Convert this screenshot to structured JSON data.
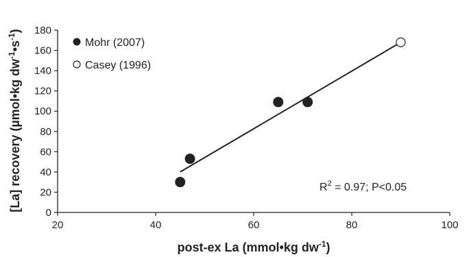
{
  "chart_data": {
    "type": "scatter",
    "xlabel_main": "post-ex La (mmol•kg dw",
    "xlabel_sup": "-1",
    "xlabel_close": ")",
    "ylabel_main": "[La] recovery (µmol•kg dw",
    "ylabel_sup1": "-1",
    "ylabel_mid": "•s",
    "ylabel_sup2": "-1",
    "ylabel_close": ")",
    "xlim": [
      20,
      100
    ],
    "ylim": [
      0,
      180
    ],
    "xticks": [
      "20",
      "40",
      "60",
      "80",
      "100"
    ],
    "yticks": [
      "0",
      "20",
      "40",
      "60",
      "80",
      "100",
      "120",
      "140",
      "160",
      "180"
    ],
    "series": [
      {
        "name": "Mohr (2007)",
        "marker": "filled",
        "points": [
          {
            "x": 45,
            "y": 30
          },
          {
            "x": 47,
            "y": 53
          },
          {
            "x": 65,
            "y": 109
          },
          {
            "x": 71,
            "y": 109
          }
        ]
      },
      {
        "name": "Casey (1996)",
        "marker": "open",
        "points": [
          {
            "x": 90,
            "y": 168
          }
        ]
      }
    ],
    "fit_line": {
      "x1": 45,
      "y1": 40,
      "x2": 90,
      "y2": 168
    },
    "annotation_main": "R",
    "annotation_sup": "2",
    "annotation_rest": " = 0.97; P<0.05",
    "grid": false,
    "legend_position": "top-left",
    "colors": {
      "marker": "#222222",
      "line": "#222222",
      "axis": "#222222"
    }
  }
}
